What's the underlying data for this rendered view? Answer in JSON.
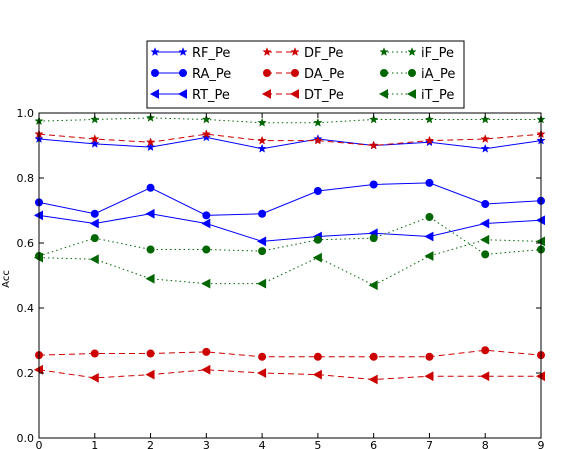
{
  "chart_data": {
    "type": "line",
    "title": "",
    "xlabel": "",
    "ylabel": "Acc",
    "x": [
      0,
      1,
      2,
      3,
      4,
      5,
      6,
      7,
      8,
      9
    ],
    "xlim": [
      0,
      9
    ],
    "ylim": [
      0.0,
      1.0
    ],
    "x_ticks": [
      "0",
      "1",
      "2",
      "3",
      "4",
      "5",
      "6",
      "7",
      "8",
      "9"
    ],
    "y_ticks": [
      "0.0",
      "0.2",
      "0.4",
      "0.6",
      "0.8",
      "1.0"
    ],
    "y_tick_values": [
      0.0,
      0.2,
      0.4,
      0.6,
      0.8,
      1.0
    ],
    "grid": false,
    "legend_position": "top-center",
    "legend_columns": 3,
    "series": [
      {
        "name": "RF_Pe",
        "color": "#0000ff",
        "line": "solid",
        "marker": "star",
        "values": [
          0.92,
          0.905,
          0.895,
          0.925,
          0.89,
          0.92,
          0.9,
          0.91,
          0.89,
          0.915
        ]
      },
      {
        "name": "RA_Pe",
        "color": "#0000ff",
        "line": "solid",
        "marker": "circle",
        "values": [
          0.725,
          0.69,
          0.77,
          0.685,
          0.69,
          0.76,
          0.78,
          0.785,
          0.72,
          0.73
        ]
      },
      {
        "name": "RT_Pe",
        "color": "#0000ff",
        "line": "solid",
        "marker": "triangle",
        "values": [
          0.685,
          0.66,
          0.69,
          0.66,
          0.605,
          0.62,
          0.63,
          0.62,
          0.66,
          0.67
        ]
      },
      {
        "name": "DF_Pe",
        "color": "#cc0000",
        "line": "dashed",
        "marker": "star",
        "values": [
          0.935,
          0.92,
          0.91,
          0.935,
          0.915,
          0.915,
          0.9,
          0.915,
          0.92,
          0.935
        ]
      },
      {
        "name": "DA_Pe",
        "color": "#cc0000",
        "line": "dashed",
        "marker": "circle",
        "values": [
          0.255,
          0.26,
          0.26,
          0.265,
          0.25,
          0.25,
          0.25,
          0.25,
          0.27,
          0.255
        ]
      },
      {
        "name": "DT_Pe",
        "color": "#cc0000",
        "line": "dashed",
        "marker": "triangle",
        "values": [
          0.21,
          0.185,
          0.195,
          0.21,
          0.2,
          0.195,
          0.18,
          0.19,
          0.19,
          0.19
        ]
      },
      {
        "name": "iF_Pe",
        "color": "#006600",
        "line": "dotted",
        "marker": "star",
        "values": [
          0.975,
          0.98,
          0.985,
          0.98,
          0.97,
          0.97,
          0.98,
          0.98,
          0.98,
          0.98
        ]
      },
      {
        "name": "iA_Pe",
        "color": "#006600",
        "line": "dotted",
        "marker": "circle",
        "values": [
          0.56,
          0.615,
          0.58,
          0.58,
          0.575,
          0.61,
          0.615,
          0.68,
          0.565,
          0.58
        ]
      },
      {
        "name": "iT_Pe",
        "color": "#006600",
        "line": "dotted",
        "marker": "triangle",
        "values": [
          0.555,
          0.55,
          0.49,
          0.475,
          0.475,
          0.555,
          0.47,
          0.56,
          0.61,
          0.605
        ]
      }
    ]
  }
}
